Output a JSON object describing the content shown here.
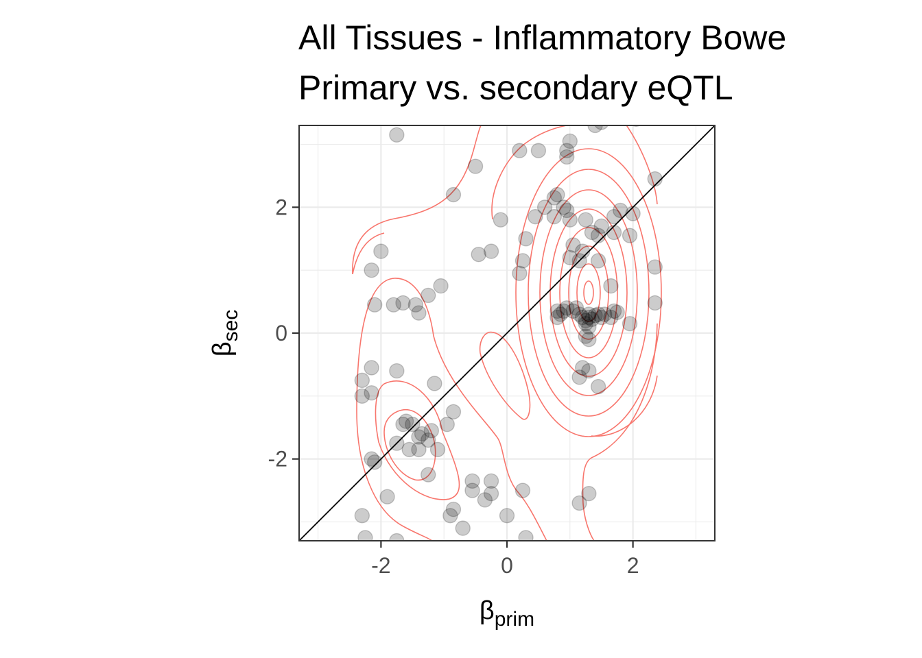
{
  "chart_data": {
    "type": "scatter",
    "title": "All Tissues - Inflammatory Bowel Disease",
    "title_line1": "All Tissues - Inflammatory Bowe",
    "title_line2": "Primary vs. secondary eQTL",
    "xlabel": "β",
    "xlabel_sub": "prim",
    "ylabel": "β",
    "ylabel_sub": "sec",
    "xlim": [
      -3.3,
      3.3
    ],
    "ylim": [
      -3.3,
      3.3
    ],
    "x_ticks": [
      -2,
      0,
      2
    ],
    "y_ticks": [
      -2,
      0,
      2
    ],
    "x_tick_labels": [
      "-2",
      "0",
      "2"
    ],
    "y_tick_labels": [
      "-2",
      "0",
      "2"
    ],
    "grid": true,
    "reference_line": "y = x",
    "point_color": "#000000",
    "contour_color": "#F8766D",
    "points": [
      [
        -1.75,
        3.15
      ],
      [
        1.0,
        3.05
      ],
      [
        0.2,
        2.9
      ],
      [
        0.5,
        2.9
      ],
      [
        0.95,
        2.9
      ],
      [
        0.95,
        2.8
      ],
      [
        1.4,
        3.3
      ],
      [
        1.5,
        3.35
      ],
      [
        2.05,
        3.4
      ],
      [
        -0.5,
        2.65
      ],
      [
        -0.85,
        2.2
      ],
      [
        2.35,
        2.45
      ],
      [
        0.8,
        2.2
      ],
      [
        0.75,
        2.15
      ],
      [
        0.6,
        2.0
      ],
      [
        0.9,
        2.0
      ],
      [
        0.95,
        1.95
      ],
      [
        0.75,
        1.85
      ],
      [
        0.45,
        1.85
      ],
      [
        1.0,
        1.8
      ],
      [
        1.25,
        1.8
      ],
      [
        -0.1,
        1.8
      ],
      [
        1.7,
        1.85
      ],
      [
        1.8,
        1.95
      ],
      [
        2.0,
        1.9
      ],
      [
        1.5,
        1.7
      ],
      [
        1.35,
        1.6
      ],
      [
        1.45,
        1.55
      ],
      [
        1.7,
        1.6
      ],
      [
        1.95,
        1.55
      ],
      [
        0.3,
        1.5
      ],
      [
        -2.0,
        1.3
      ],
      [
        -0.25,
        1.3
      ],
      [
        -0.45,
        1.25
      ],
      [
        1.05,
        1.4
      ],
      [
        1.2,
        1.3
      ],
      [
        0.25,
        1.15
      ],
      [
        1.0,
        1.2
      ],
      [
        1.15,
        1.15
      ],
      [
        1.45,
        1.15
      ],
      [
        2.35,
        1.05
      ],
      [
        -2.15,
        1.0
      ],
      [
        0.2,
        0.95
      ],
      [
        1.65,
        0.75
      ],
      [
        -1.05,
        0.75
      ],
      [
        -1.25,
        0.6
      ],
      [
        -2.1,
        0.45
      ],
      [
        -1.8,
        0.45
      ],
      [
        -1.65,
        0.48
      ],
      [
        -1.45,
        0.45
      ],
      [
        -1.4,
        0.32
      ],
      [
        2.35,
        0.48
      ],
      [
        0.8,
        0.35
      ],
      [
        0.85,
        0.3
      ],
      [
        0.9,
        0.35
      ],
      [
        0.95,
        0.4
      ],
      [
        1.05,
        0.35
      ],
      [
        1.1,
        0.4
      ],
      [
        1.15,
        0.3
      ],
      [
        0.8,
        0.25
      ],
      [
        1.2,
        0.25
      ],
      [
        1.25,
        0.2
      ],
      [
        1.3,
        0.25
      ],
      [
        1.35,
        0.22
      ],
      [
        1.3,
        0.3
      ],
      [
        1.4,
        0.28
      ],
      [
        1.45,
        0.3
      ],
      [
        1.5,
        0.25
      ],
      [
        1.55,
        0.3
      ],
      [
        1.7,
        0.35
      ],
      [
        1.75,
        0.33
      ],
      [
        1.65,
        0.25
      ],
      [
        1.95,
        0.15
      ],
      [
        1.25,
        0.15
      ],
      [
        1.3,
        0.1
      ],
      [
        1.3,
        -0.1
      ],
      [
        1.25,
        -0.05
      ],
      [
        1.2,
        -0.55
      ],
      [
        1.3,
        -0.6
      ],
      [
        1.15,
        -0.7
      ],
      [
        1.45,
        -0.85
      ],
      [
        -2.15,
        -0.55
      ],
      [
        -1.75,
        -0.6
      ],
      [
        -2.3,
        -0.75
      ],
      [
        -2.3,
        -1.0
      ],
      [
        -2.15,
        -0.95
      ],
      [
        -1.15,
        -0.8
      ],
      [
        -0.85,
        -1.25
      ],
      [
        -1.6,
        -1.4
      ],
      [
        -1.5,
        -1.45
      ],
      [
        -1.65,
        -1.45
      ],
      [
        -1.35,
        -1.6
      ],
      [
        -1.2,
        -1.55
      ],
      [
        -1.25,
        -1.7
      ],
      [
        -0.95,
        -1.45
      ],
      [
        -1.4,
        -1.65
      ],
      [
        -1.75,
        -1.75
      ],
      [
        -1.4,
        -1.85
      ],
      [
        -1.55,
        -1.85
      ],
      [
        -1.1,
        -1.85
      ],
      [
        -2.15,
        -2.0
      ],
      [
        -2.1,
        -2.05
      ],
      [
        -1.25,
        -2.25
      ],
      [
        -0.55,
        -2.35
      ],
      [
        -0.25,
        -2.35
      ],
      [
        -0.55,
        -2.5
      ],
      [
        -0.25,
        -2.55
      ],
      [
        0.25,
        -2.5
      ],
      [
        -0.35,
        -2.65
      ],
      [
        1.3,
        -2.55
      ],
      [
        1.15,
        -2.7
      ],
      [
        -1.9,
        -2.6
      ],
      [
        -0.85,
        -2.8
      ],
      [
        -0.9,
        -2.9
      ],
      [
        -2.3,
        -2.9
      ],
      [
        0.0,
        -2.9
      ],
      [
        -0.7,
        -3.1
      ],
      [
        -2.25,
        -3.25
      ],
      [
        -1.75,
        -3.3
      ],
      [
        0.3,
        -3.25
      ]
    ]
  }
}
